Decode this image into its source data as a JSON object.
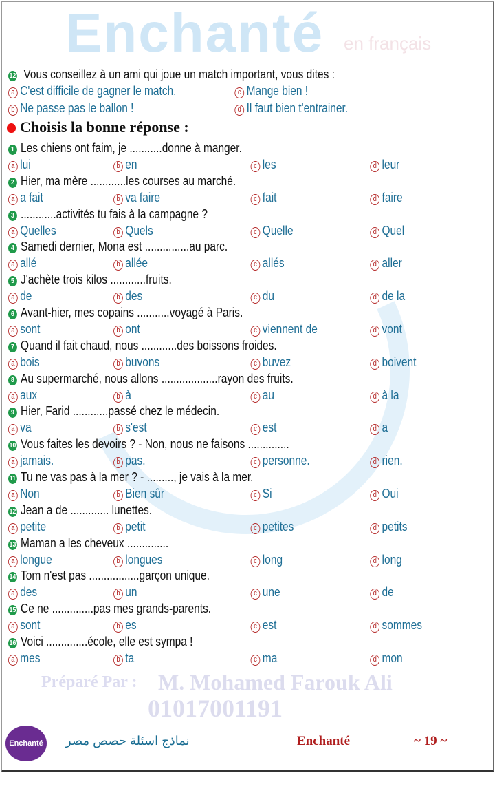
{
  "watermark": {
    "brand": "Enchanté",
    "sub": "en français",
    "prepared": "Préparé Par :",
    "author": "M. Mohamed Farouk Ali",
    "phone": "01017001191"
  },
  "prev_question": {
    "number": "12",
    "text": "Vous conseillez à un ami qui joue un match important, vous dites :",
    "options": [
      {
        "letter": "a",
        "text": "C'est difficile de gagner le match."
      },
      {
        "letter": "c",
        "text": "Mange bien !"
      },
      {
        "letter": "b",
        "text": "Ne passe pas le ballon !"
      },
      {
        "letter": "d",
        "text": "Il faut bien t'entrainer."
      }
    ]
  },
  "section": {
    "title": "Choisis la bonne réponse :",
    "icon": "apple-icon"
  },
  "questions": [
    {
      "number": "1",
      "text": "Les chiens ont faim, je ...........donne à manger.",
      "options": [
        "lui",
        "en",
        "les",
        "leur"
      ]
    },
    {
      "number": "2",
      "text": "Hier, ma mère ............les courses au marché.",
      "options": [
        "a fait",
        "va faire",
        "fait",
        "faire"
      ]
    },
    {
      "number": "3",
      "text": "............activités tu fais à la campagne ?",
      "options": [
        "Quelles",
        "Quels",
        "Quelle",
        "Quel"
      ]
    },
    {
      "number": "4",
      "text": "Samedi dernier, Mona est ...............au parc.",
      "options": [
        "allé",
        "allée",
        "allés",
        "aller"
      ]
    },
    {
      "number": "5",
      "text": "J'achète trois kilos ............fruits.",
      "options": [
        "de",
        "des",
        "du",
        "de la"
      ]
    },
    {
      "number": "6",
      "text": "Avant-hier, mes copains ...........voyagé à Paris.",
      "options": [
        "sont",
        "ont",
        "viennent de",
        "vont"
      ]
    },
    {
      "number": "7",
      "text": "Quand il fait chaud, nous ............des boissons froides.",
      "options": [
        "bois",
        "buvons",
        "buvez",
        "boivent"
      ]
    },
    {
      "number": "8",
      "text": "Au supermarché, nous allons ...................rayon des fruits.",
      "options": [
        "aux",
        "à",
        "au",
        "à la"
      ]
    },
    {
      "number": "9",
      "text": "Hier, Farid ............passé chez le médecin.",
      "options": [
        "va",
        "s'est",
        "est",
        "a"
      ]
    },
    {
      "number": "10",
      "text": "Vous faites les devoirs ?   - Non, nous ne faisons ..............",
      "options": [
        "jamais.",
        "pas.",
        "personne.",
        "rien."
      ]
    },
    {
      "number": "11",
      "text": "Tu ne vas pas à la mer ? - ........., je vais à la mer.",
      "options": [
        "Non",
        "Bien sûr",
        "Si",
        "Oui"
      ]
    },
    {
      "number": "12",
      "text": "Jean a de ............. lunettes.",
      "options": [
        "petite",
        "petit",
        "petites",
        "petits"
      ]
    },
    {
      "number": "13",
      "text": "Maman a les cheveux ..............",
      "options": [
        "longue",
        "longues",
        "long",
        "long"
      ]
    },
    {
      "number": "14",
      "text": "Tom n'est pas .................garçon unique.",
      "options": [
        "des",
        "un",
        "une",
        "de"
      ]
    },
    {
      "number": "15",
      "text": "Ce ne ..............pas mes grands-parents.",
      "options": [
        "sont",
        "es",
        "est",
        "sommes"
      ]
    },
    {
      "number": "16",
      "text": "Voici ..............école, elle est sympa !",
      "options": [
        "mes",
        "ta",
        "ma",
        "mon"
      ]
    }
  ],
  "option_letters": [
    "a",
    "b",
    "c",
    "d"
  ],
  "colors": {
    "question_number": "#1f9a4a",
    "option_letter": "#b52a2a",
    "option_text": "#1e6e95",
    "footer_brand": "#b01e1e"
  },
  "footer": {
    "logo": "Enchanté",
    "arabic": "نماذج اسئلة حصص مصر",
    "brand": "Enchanté",
    "page": "~ 19 ~"
  }
}
